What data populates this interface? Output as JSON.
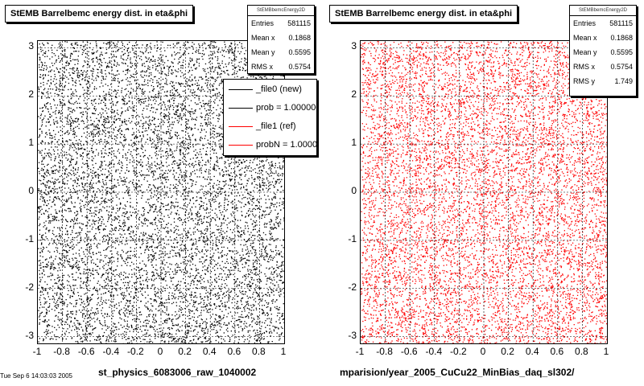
{
  "panels": [
    {
      "title": "StEMB Barrelbemc energy dist. in eta&phi",
      "stats": {
        "header": "StEMBbemcEnergy2D",
        "rows": [
          {
            "label": "Entries",
            "value": "581115"
          },
          {
            "label": "Mean x",
            "value": "0.1868"
          },
          {
            "label": "Mean y",
            "value": "0.5595"
          },
          {
            "label": "RMS x",
            "value": "0.5754"
          }
        ]
      },
      "xlabel": "st_physics_6083006_raw_1040002",
      "color": "#000000"
    },
    {
      "title": "StEMB Barrelbemc energy dist. in eta&phi",
      "stats": {
        "header": "StEMBbemcEnergy2D",
        "rows": [
          {
            "label": "Entries",
            "value": "581115"
          },
          {
            "label": "Mean x",
            "value": "0.1868"
          },
          {
            "label": "Mean y",
            "value": "0.5595"
          },
          {
            "label": "RMS x",
            "value": "0.5754"
          },
          {
            "label": "RMS y",
            "value": "1.749"
          }
        ]
      },
      "xlabel": "mparision/year_2005_CuCu22_MinBias_daq_sl302/",
      "color": "#ff0000"
    }
  ],
  "legend": [
    {
      "label": "_file0 (new)",
      "color": "#000000"
    },
    {
      "label": "prob = 1.000000",
      "color": "#000000"
    },
    {
      "label": "_file1 (ref)",
      "color": "#ff0000"
    },
    {
      "label": "probN = 1.000000",
      "color": "#ff0000"
    }
  ],
  "corner_text": "Tue Sep  6 14:03:03 2005",
  "chart_data": [
    {
      "type": "scatter",
      "title": "StEMB Barrelbemc energy dist. in eta&phi",
      "xlabel": "st_physics_6083006_raw_1040002",
      "ylabel": "",
      "xlim": [
        -1,
        1
      ],
      "ylim": [
        -3.14,
        3.14
      ],
      "xticks": [
        "-1",
        "-0.8",
        "-0.6",
        "-0.4",
        "-0.2",
        "0",
        "0.2",
        "0.4",
        "0.6",
        "0.8",
        "1"
      ],
      "yticks": [
        "3",
        "2",
        "1",
        "0",
        "-1",
        "-2",
        "-3"
      ],
      "grid": true,
      "distribution": "uniform",
      "entries": 581115,
      "series": [
        {
          "name": "_file0 (new)",
          "color": "#000000"
        }
      ]
    },
    {
      "type": "scatter",
      "title": "StEMB Barrelbemc energy dist. in eta&phi",
      "xlabel": "mparision/year_2005_CuCu22_MinBias_daq_sl302/",
      "ylabel": "",
      "xlim": [
        -1,
        1
      ],
      "ylim": [
        -3.14,
        3.14
      ],
      "xticks": [
        "-1",
        "-0.8",
        "-0.6",
        "-0.4",
        "-0.2",
        "0",
        "0.2",
        "0.4",
        "0.6",
        "0.8",
        "1"
      ],
      "yticks": [
        "3",
        "2",
        "1",
        "0",
        "-1",
        "-2",
        "-3"
      ],
      "grid": true,
      "distribution": "uniform",
      "entries": 581115,
      "series": [
        {
          "name": "_file1 (ref)",
          "color": "#ff0000"
        }
      ]
    }
  ]
}
